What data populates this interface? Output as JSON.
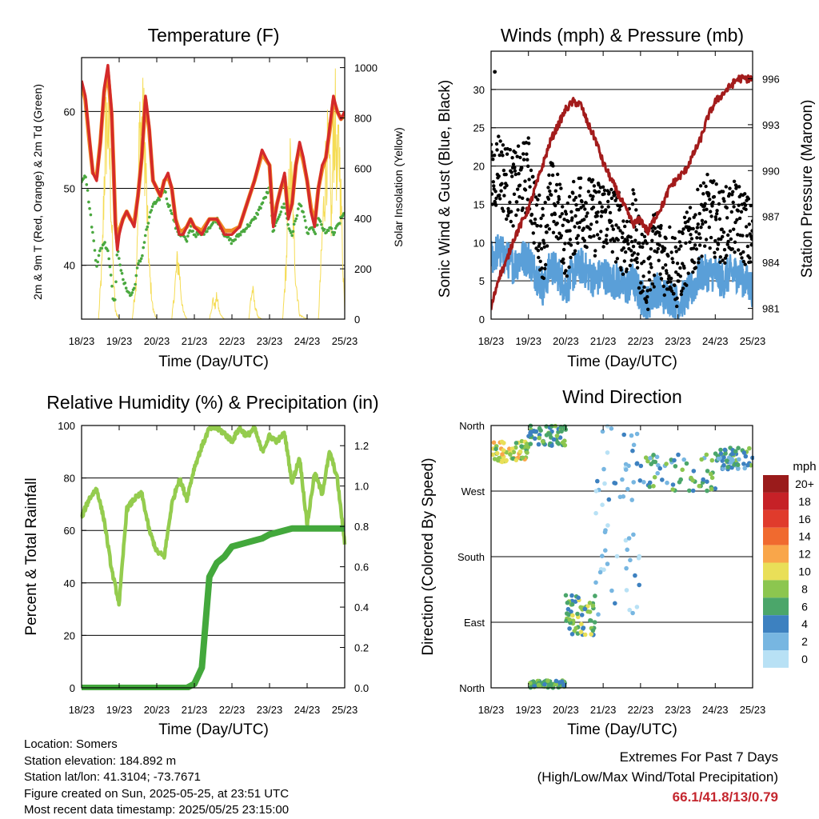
{
  "colors": {
    "temp2m": "#d42a2a",
    "temp9m": "#f08a24",
    "dewpoint": "#4aa83f",
    "solar": "#f5dc55",
    "wind": "#5a9fd8",
    "gust": "#000000",
    "pressure": "#a31c1c",
    "rh": "#94cc4e",
    "rain": "#43a83c"
  },
  "x_ticks": [
    "18/23",
    "19/23",
    "20/23",
    "21/23",
    "22/23",
    "23/23",
    "24/23",
    "25/23"
  ],
  "xlabel": "Time (Day/UTC)",
  "chart_data": [
    {
      "type": "line",
      "title": "Temperature (F)",
      "xlabel": "Time (Day/UTC)",
      "ylabel": "2m & 9m T (Red, Orange) & 2m Td (Green)",
      "y2label": "Solar Insolation (Yellow)",
      "x_ticks": [
        "18/23",
        "19/23",
        "20/23",
        "21/23",
        "22/23",
        "23/23",
        "24/23",
        "25/23"
      ],
      "ylim": [
        33,
        67
      ],
      "y_ticks": [
        40,
        50,
        60
      ],
      "y2lim": [
        0,
        1040
      ],
      "y2_ticks": [
        0,
        200,
        400,
        600,
        800,
        1000
      ],
      "x": [
        0,
        0.1,
        0.2,
        0.3,
        0.4,
        0.5,
        0.6,
        0.7,
        0.8,
        0.85,
        0.9,
        0.95,
        1.0,
        1.1,
        1.2,
        1.3,
        1.4,
        1.5,
        1.6,
        1.7,
        1.8,
        1.9,
        2.0,
        2.1,
        2.2,
        2.3,
        2.4,
        2.5,
        2.6,
        2.7,
        2.8,
        2.9,
        3.0,
        3.2,
        3.4,
        3.6,
        3.8,
        4.0,
        4.2,
        4.4,
        4.6,
        4.8,
        5.0,
        5.1,
        5.2,
        5.3,
        5.4,
        5.5,
        5.6,
        5.7,
        5.8,
        5.9,
        6.0,
        6.1,
        6.2,
        6.3,
        6.4,
        6.5,
        6.6,
        6.7,
        6.8,
        6.9,
        7.0
      ],
      "series": [
        {
          "name": "2m T",
          "values": [
            64,
            62,
            57,
            52,
            51,
            56,
            63,
            66,
            60,
            53,
            45,
            42,
            44,
            46,
            47,
            46,
            45,
            49,
            54,
            62,
            58,
            51,
            50,
            49,
            51,
            52,
            50,
            46,
            44,
            44,
            45,
            46,
            45,
            44,
            46,
            46,
            44,
            44,
            45,
            48,
            51,
            55,
            53,
            45,
            48,
            50,
            52,
            46,
            48,
            53,
            56,
            54,
            51,
            47,
            45,
            50,
            53,
            54,
            58,
            62,
            60,
            59,
            60
          ]
        },
        {
          "name": "9m T",
          "values": [
            63.5,
            61.5,
            56.5,
            52,
            51.5,
            56,
            62.5,
            65,
            59.5,
            53,
            45.5,
            43,
            44.5,
            46,
            47,
            46,
            45.5,
            49,
            54,
            61.5,
            57.5,
            51,
            50,
            49,
            51,
            51.5,
            50,
            46,
            44.5,
            44.5,
            45,
            46,
            45,
            44.5,
            46,
            46,
            44.5,
            44.5,
            45,
            48,
            51,
            54.5,
            53,
            45.5,
            48,
            50,
            51.5,
            46.5,
            48,
            53,
            55.5,
            53.5,
            51,
            47.5,
            45.5,
            50,
            52.5,
            54,
            57.5,
            61.5,
            60,
            59,
            59.5
          ]
        },
        {
          "name": "2m Td",
          "values": [
            51,
            52,
            48,
            44,
            40,
            42,
            43,
            42,
            38,
            35,
            36,
            42,
            41,
            38,
            37,
            36,
            37,
            40,
            41,
            44,
            46,
            48,
            48,
            49,
            50,
            48,
            47,
            45,
            44,
            44,
            43,
            45,
            44,
            44,
            45,
            46,
            44,
            43,
            44,
            45,
            46,
            48,
            50,
            44,
            46,
            47,
            48,
            45,
            44,
            46,
            48,
            47,
            44,
            45,
            44,
            46,
            45,
            44,
            45,
            44,
            45,
            46,
            47
          ]
        }
      ],
      "solar": {
        "name": "Solar Insolation",
        "x": [
          0.0,
          0.45,
          0.55,
          0.6,
          0.65,
          0.7,
          0.75,
          0.8,
          0.85,
          0.9,
          1.0,
          1.35,
          1.45,
          1.5,
          1.55,
          1.6,
          1.65,
          1.7,
          1.75,
          1.8,
          1.9,
          2.0,
          2.4,
          2.5,
          2.55,
          2.6,
          2.65,
          2.7,
          2.8,
          3.0,
          3.4,
          3.5,
          3.55,
          3.6,
          3.65,
          3.7,
          3.8,
          4.0,
          4.45,
          4.5,
          4.55,
          4.6,
          4.65,
          4.7,
          4.8,
          5.0,
          5.35,
          5.45,
          5.5,
          5.55,
          5.6,
          5.65,
          5.7,
          5.8,
          6.0,
          6.3,
          6.4,
          6.5,
          6.55,
          6.6,
          6.65,
          6.7,
          6.75,
          6.8,
          6.85,
          6.9,
          6.95,
          7.0
        ],
        "values": [
          0,
          0,
          300,
          700,
          950,
          1000,
          800,
          500,
          200,
          40,
          0,
          0,
          200,
          600,
          1000,
          950,
          1000,
          800,
          500,
          250,
          50,
          0,
          0,
          200,
          300,
          250,
          120,
          40,
          0,
          0,
          0,
          100,
          60,
          120,
          50,
          20,
          0,
          0,
          0,
          100,
          150,
          80,
          40,
          10,
          0,
          0,
          0,
          300,
          600,
          750,
          650,
          400,
          200,
          20,
          0,
          0,
          400,
          800,
          850,
          700,
          500,
          950,
          1000,
          700,
          900,
          600,
          300,
          50
        ]
      }
    },
    {
      "type": "scatter",
      "title": "Winds (mph) & Pressure (mb)",
      "xlabel": "Time (Day/UTC)",
      "ylabel": "Sonic Wind & Gust (Blue, Black)",
      "y2label": "Station Pressure (Maroon)",
      "x_ticks": [
        "18/23",
        "19/23",
        "20/23",
        "21/23",
        "22/23",
        "23/23",
        "24/23",
        "25/23"
      ],
      "ylim": [
        0,
        35
      ],
      "y_ticks": [
        0,
        5,
        10,
        15,
        20,
        25,
        30
      ],
      "y2lim": [
        980.3,
        997.8
      ],
      "y2_ticks": [
        981,
        984,
        987,
        990,
        993,
        996
      ],
      "x": [
        0,
        0.2,
        0.4,
        0.6,
        0.8,
        1.0,
        1.2,
        1.4,
        1.6,
        1.8,
        2.0,
        2.2,
        2.4,
        2.6,
        2.8,
        3.0,
        3.2,
        3.4,
        3.6,
        3.8,
        4.0,
        4.2,
        4.4,
        4.6,
        4.8,
        5.0,
        5.2,
        5.4,
        5.6,
        5.8,
        6.0,
        6.2,
        6.4,
        6.6,
        6.8,
        7.0
      ],
      "series": [
        {
          "name": "Sonic Wind",
          "values": [
            8,
            9,
            8,
            7,
            8,
            8,
            6,
            4,
            7,
            6,
            4,
            6,
            7,
            6,
            5,
            6,
            5,
            5,
            4,
            5,
            3,
            2,
            4,
            3,
            3,
            2,
            3,
            4,
            6,
            6,
            6,
            5,
            6,
            6,
            5,
            4
          ]
        },
        {
          "name": "Gust",
          "values": [
            18,
            20,
            18,
            17,
            18,
            19,
            13,
            10,
            16,
            14,
            10,
            13,
            15,
            14,
            13,
            14,
            13,
            12,
            10,
            12,
            8,
            6,
            10,
            8,
            8,
            6,
            9,
            10,
            13,
            14,
            13,
            12,
            13,
            13,
            12,
            10
          ]
        },
        {
          "name": "Station Pressure",
          "values": [
            981,
            983,
            984,
            985.5,
            986.5,
            987.5,
            989,
            990.5,
            992,
            993,
            994,
            994.5,
            994.3,
            993,
            992,
            990.5,
            989.5,
            988.5,
            987.5,
            986.5,
            986.8,
            986,
            987,
            987.8,
            989,
            989.5,
            990,
            991,
            992,
            993.5,
            994.5,
            995,
            995.5,
            996,
            996,
            996
          ]
        }
      ],
      "annotations": [
        {
          "x": 0.1,
          "y": 32.3
        }
      ]
    },
    {
      "type": "line",
      "title": "Relative Humidity (%) & Precipitation (in)",
      "xlabel": "Time (Day/UTC)",
      "ylabel": "Percent & Total Rainfall",
      "x_ticks": [
        "18/23",
        "19/23",
        "20/23",
        "21/23",
        "22/23",
        "23/23",
        "24/23",
        "25/23"
      ],
      "ylim": [
        0,
        100
      ],
      "y_ticks": [
        0,
        20,
        40,
        60,
        80,
        100
      ],
      "y2lim": [
        0,
        1.3
      ],
      "y2_ticks": [
        0.0,
        0.2,
        0.4,
        0.6,
        0.8,
        1.0,
        1.2
      ],
      "x": [
        0,
        0.2,
        0.4,
        0.6,
        0.8,
        1.0,
        1.2,
        1.4,
        1.6,
        1.8,
        2.0,
        2.2,
        2.4,
        2.6,
        2.8,
        3.0,
        3.2,
        3.4,
        3.6,
        3.8,
        4.0,
        4.2,
        4.4,
        4.6,
        4.8,
        5.0,
        5.2,
        5.4,
        5.6,
        5.8,
        6.0,
        6.2,
        6.4,
        6.6,
        6.8,
        7.0
      ],
      "series": [
        {
          "name": "Relative Humidity",
          "values": [
            65,
            72,
            76,
            64,
            45,
            32,
            68,
            72,
            74,
            60,
            52,
            50,
            70,
            80,
            72,
            84,
            92,
            99,
            99,
            97,
            94,
            99,
            96,
            99,
            90,
            96,
            94,
            97,
            78,
            88,
            62,
            82,
            74,
            90,
            80,
            55
          ]
        },
        {
          "name": "Total Rainfall",
          "values": [
            0,
            0,
            0,
            0,
            0,
            0,
            0,
            0,
            0,
            0,
            0,
            0,
            0,
            0,
            0,
            0.02,
            0.1,
            0.55,
            0.62,
            0.65,
            0.7,
            0.71,
            0.72,
            0.73,
            0.74,
            0.76,
            0.77,
            0.78,
            0.79,
            0.79,
            0.79,
            0.79,
            0.79,
            0.79,
            0.79,
            0.79
          ]
        }
      ]
    },
    {
      "type": "scatter",
      "title": "Wind Direction",
      "xlabel": "Time (Day/UTC)",
      "ylabel": "Direction (Colored By Speed)",
      "x_ticks": [
        "18/23",
        "19/23",
        "20/23",
        "21/23",
        "22/23",
        "23/23",
        "24/23",
        "25/23"
      ],
      "ylim": [
        0,
        360
      ],
      "y_tick_values": [
        0,
        90,
        180,
        270,
        360
      ],
      "y_ticks": [
        "North",
        "East",
        "South",
        "West",
        "North"
      ],
      "legend_title": "mph",
      "legend_labels": [
        "20+",
        "18",
        "16",
        "14",
        "12",
        "10",
        "8",
        "6",
        "4",
        "2",
        "0"
      ],
      "legend_colors": [
        "#9a1b1b",
        "#c62127",
        "#e03b2c",
        "#f06a2f",
        "#f9a64a",
        "#e9df58",
        "#8cc64f",
        "#4ba66a",
        "#3d81c0",
        "#77b6e1",
        "#b8e1f5"
      ],
      "legend_placement": "right",
      "clusters": [
        {
          "x": [
            0.0,
            1.0
          ],
          "dir": [
            310,
            340
          ],
          "speed": [
            6,
            12
          ]
        },
        {
          "x": [
            1.0,
            2.0
          ],
          "dir": [
            330,
            360
          ],
          "speed": [
            4,
            8
          ]
        },
        {
          "x": [
            1.0,
            2.0
          ],
          "dir": [
            0,
            10
          ],
          "speed": [
            4,
            8
          ]
        },
        {
          "x": [
            2.0,
            2.8
          ],
          "dir": [
            70,
            130
          ],
          "speed": [
            4,
            10
          ]
        },
        {
          "x": [
            2.8,
            4.0
          ],
          "dir": [
            100,
            360
          ],
          "speed": [
            0,
            4
          ]
        },
        {
          "x": [
            4.0,
            6.0
          ],
          "dir": [
            270,
            320
          ],
          "speed": [
            2,
            9
          ]
        },
        {
          "x": [
            6.0,
            7.0
          ],
          "dir": [
            300,
            330
          ],
          "speed": [
            2,
            8
          ]
        }
      ]
    }
  ],
  "info": {
    "location": "Location: Somers",
    "elevation": "Station elevation: 184.892 m",
    "latlon": "Station lat/lon: 41.3104; -73.7671",
    "created": "Figure created on Sun, 2025-05-25, at 23:51 UTC",
    "recent": "Most recent data timestamp: 2025/05/25 23:15:00"
  },
  "extremes": {
    "title": "Extremes For Past 7 Days",
    "subtitle": "(High/Low/Max Wind/Total Precipitation)",
    "values": "66.1/41.8/13/0.79"
  }
}
